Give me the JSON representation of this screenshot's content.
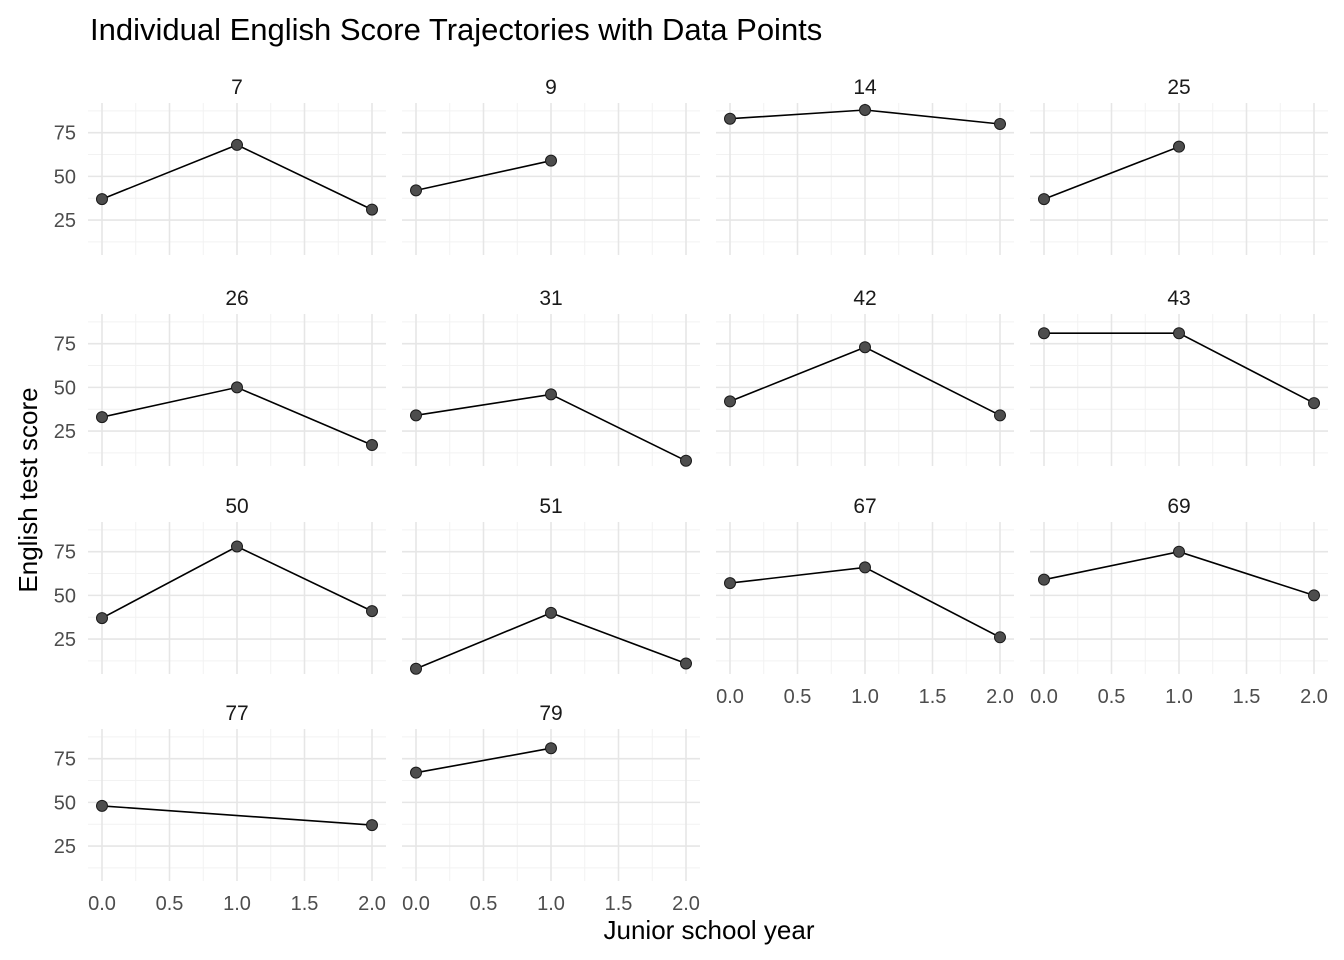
{
  "chart_data": {
    "type": "line",
    "title": "Individual English Score Trajectories with Data Points",
    "xlabel": "Junior school year",
    "ylabel": "English test score",
    "xlim": [
      0,
      2
    ],
    "ylim": [
      5,
      92
    ],
    "x_ticks": [
      "0.0",
      "0.5",
      "1.0",
      "1.5",
      "2.0"
    ],
    "y_ticks": [
      "25",
      "50",
      "75"
    ],
    "grid": true,
    "line_color": "#000000",
    "point_color": "#4d4d4d",
    "series": [
      {
        "name": "7",
        "points": [
          [
            0,
            37
          ],
          [
            1,
            68
          ],
          [
            2,
            31
          ]
        ]
      },
      {
        "name": "9",
        "points": [
          [
            0,
            42
          ],
          [
            1,
            59
          ]
        ]
      },
      {
        "name": "14",
        "points": [
          [
            0,
            83
          ],
          [
            1,
            88
          ],
          [
            2,
            80
          ]
        ]
      },
      {
        "name": "25",
        "points": [
          [
            0,
            37
          ],
          [
            1,
            67
          ]
        ]
      },
      {
        "name": "26",
        "points": [
          [
            0,
            33
          ],
          [
            1,
            50
          ],
          [
            2,
            17
          ]
        ]
      },
      {
        "name": "31",
        "points": [
          [
            0,
            34
          ],
          [
            1,
            46
          ],
          [
            2,
            8
          ]
        ]
      },
      {
        "name": "42",
        "points": [
          [
            0,
            42
          ],
          [
            1,
            73
          ],
          [
            2,
            34
          ]
        ]
      },
      {
        "name": "43",
        "points": [
          [
            0,
            81
          ],
          [
            1,
            81
          ],
          [
            2,
            41
          ]
        ]
      },
      {
        "name": "50",
        "points": [
          [
            0,
            37
          ],
          [
            1,
            78
          ],
          [
            2,
            41
          ]
        ]
      },
      {
        "name": "51",
        "points": [
          [
            0,
            8
          ],
          [
            1,
            40
          ],
          [
            2,
            11
          ]
        ]
      },
      {
        "name": "67",
        "points": [
          [
            0,
            57
          ],
          [
            1,
            66
          ],
          [
            2,
            26
          ]
        ]
      },
      {
        "name": "69",
        "points": [
          [
            0,
            59
          ],
          [
            1,
            75
          ],
          [
            2,
            50
          ]
        ]
      },
      {
        "name": "77",
        "points": [
          [
            0,
            48
          ],
          [
            2,
            37
          ]
        ]
      },
      {
        "name": "79",
        "points": [
          [
            0,
            67
          ],
          [
            1,
            81
          ]
        ]
      }
    ]
  }
}
